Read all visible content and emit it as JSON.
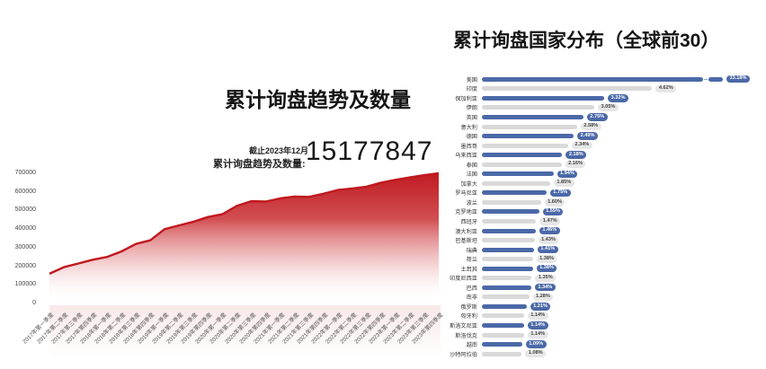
{
  "left_panel": {
    "title": "累计询盘趋势及数量",
    "asof_label": "截止2023年12月",
    "stat_label": "累计询盘趋势及数量:",
    "stat_value": "15177847"
  },
  "right_panel": {
    "title": "累计询盘国家分布（全球前30）"
  },
  "chart_data": [
    {
      "type": "area",
      "title": "累计询盘趋势及数量",
      "annotation": {
        "asof": "截止2023年12月",
        "label": "累计询盘趋势及数量:",
        "value": "15177847"
      },
      "x": [
        "2017年第一季度",
        "2017年第二季度",
        "2017年第三季度",
        "2017年第四季度",
        "2018年第一季度",
        "2018年第二季度",
        "2018年第三季度",
        "2018年第四季度",
        "2019年第一季度",
        "2019年第二季度",
        "2019年第三季度",
        "2019年第四季度",
        "2020年第一季度",
        "2020年第二季度",
        "2020年第三季度",
        "2020年第四季度",
        "2021年第一季度",
        "2021年第二季度",
        "2021年第三季度",
        "2021年第四季度",
        "2022年第一季度",
        "2022年第二季度",
        "2022年第三季度",
        "2022年第四季度",
        "2023年第一季度",
        "2023年第二季度",
        "2023年第三季度",
        "2023年第四季度"
      ],
      "values": [
        160000,
        195000,
        215000,
        235000,
        250000,
        280000,
        320000,
        340000,
        400000,
        420000,
        440000,
        465000,
        480000,
        525000,
        550000,
        548000,
        565000,
        575000,
        573000,
        590000,
        610000,
        618000,
        628000,
        650000,
        665000,
        678000,
        690000,
        700000
      ],
      "ylim": [
        0,
        700000
      ],
      "yticks": [
        700000,
        600000,
        500000,
        400000,
        300000,
        200000,
        100000,
        0
      ],
      "grid": false,
      "colors": {
        "line": "#c0181e",
        "fill_top": "#bf1b21",
        "fill_bottom": "#ffffff"
      }
    },
    {
      "type": "bar",
      "orientation": "horizontal",
      "title": "累计询盘国家分布（全球前30）",
      "categories": [
        "美国",
        "印度",
        "保加利亚",
        "伊朗",
        "英国",
        "意大利",
        "德国",
        "墨西哥",
        "马来西亚",
        "泰国",
        "法国",
        "加拿大",
        "罗马尼亚",
        "波兰",
        "克罗地亚",
        "西班牙",
        "澳大利亚",
        "巴基斯坦",
        "瑞典",
        "荷兰",
        "土耳其",
        "印度尼西亚",
        "巴西",
        "南非",
        "俄罗斯",
        "匈牙利",
        "斯洛文尼亚",
        "斯洛伐克",
        "越南",
        "沙特阿拉伯"
      ],
      "values": [
        33.18,
        4.62,
        3.32,
        3.05,
        2.75,
        2.58,
        2.49,
        2.34,
        2.18,
        2.16,
        1.94,
        1.85,
        1.75,
        1.6,
        1.55,
        1.47,
        1.46,
        1.43,
        1.41,
        1.38,
        1.38,
        1.35,
        1.34,
        1.28,
        1.21,
        1.14,
        1.14,
        1.14,
        1.09,
        1.08
      ],
      "labels": [
        "33.18%",
        "4.62%",
        "3.32%",
        "3.05%",
        "2.75%",
        "2.58%",
        "2.49%",
        "2.34%",
        "2.18%",
        "2.16%",
        "1.94%",
        "1.85%",
        "1.75%",
        "1.60%",
        "1.55%",
        "1.47%",
        "1.46%",
        "1.43%",
        "1.41%",
        "1.38%",
        "1.38%",
        "1.35%",
        "1.34%",
        "1.28%",
        "1.21%",
        "1.14%",
        "1.14%",
        "1.14%",
        "1.09%",
        "1.08%"
      ],
      "truncated_index": 0,
      "color_pattern": [
        "blue",
        "gray"
      ],
      "colors": {
        "blue": "#4b69a8",
        "gray": "#d9d9d9"
      },
      "legend": false
    }
  ]
}
